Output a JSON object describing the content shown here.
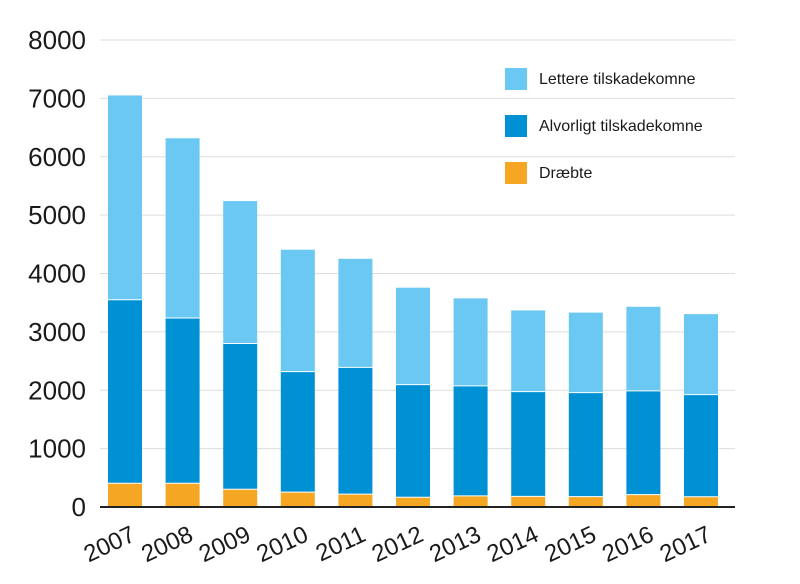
{
  "chart_data": {
    "type": "bar",
    "stacked": true,
    "categories": [
      "2007",
      "2008",
      "2009",
      "2010",
      "2011",
      "2012",
      "2013",
      "2014",
      "2015",
      "2016",
      "2017"
    ],
    "series": [
      {
        "name": "Dræbte",
        "color": "#f5a623",
        "values": [
          406,
          406,
          303,
          255,
          220,
          167,
          191,
          182,
          178,
          211,
          175
        ]
      },
      {
        "name": "Alvorligt tilskadekomne",
        "color": "#0091d5",
        "values": [
          3144,
          2831,
          2498,
          2063,
          2172,
          1930,
          1883,
          1795,
          1782,
          1779,
          1749
        ]
      },
      {
        "name": "Lettere tilskadekomne",
        "color": "#6ac8f2",
        "values": [
          3500,
          3080,
          2440,
          2090,
          1860,
          1660,
          1500,
          1390,
          1370,
          1440,
          1380
        ]
      }
    ],
    "legend_order": [
      "Lettere tilskadekomne",
      "Alvorligt tilskadekomne",
      "Dræbte"
    ],
    "legend_position": "top-right",
    "yticks": [
      "0",
      "1000",
      "2000",
      "3000",
      "4000",
      "5000",
      "6000",
      "7000",
      "8000"
    ],
    "ylim": [
      0,
      8000
    ],
    "grid": true,
    "title": "",
    "xlabel": "",
    "ylabel": ""
  }
}
